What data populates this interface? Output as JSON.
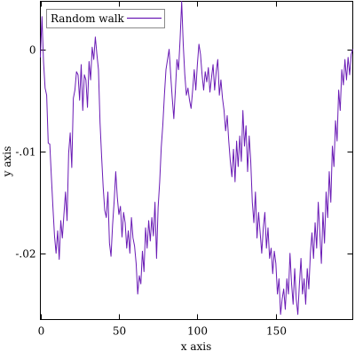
{
  "chart_data": {
    "type": "line",
    "title": "",
    "xlabel": "x axis",
    "ylabel": "y axis",
    "xlim": [
      0,
      199
    ],
    "ylim": [
      -0.0265,
      0.0047
    ],
    "x_ticks": [
      {
        "value": 0,
        "label": "0"
      },
      {
        "value": 50,
        "label": "50"
      },
      {
        "value": 100,
        "label": "100"
      },
      {
        "value": 150,
        "label": "150"
      }
    ],
    "y_ticks": [
      {
        "value": 0,
        "label": "0"
      },
      {
        "value": -0.01,
        "label": "-.01"
      },
      {
        "value": -0.02,
        "label": "-.02"
      }
    ],
    "legend": {
      "position": "top-left"
    },
    "series": [
      {
        "name": "Random walk",
        "color": "#6a1bb5",
        "x_start": 0,
        "x_step": 1,
        "values": [
          -0.0008,
          0.0032,
          -0.0012,
          -0.0038,
          -0.0045,
          -0.0092,
          -0.0093,
          -0.0125,
          -0.0155,
          -0.0183,
          -0.02,
          -0.0178,
          -0.0206,
          -0.0168,
          -0.0185,
          -0.0162,
          -0.014,
          -0.0168,
          -0.0102,
          -0.0082,
          -0.0116,
          -0.0048,
          -0.004,
          -0.0022,
          -0.0025,
          -0.005,
          -0.0015,
          -0.006,
          -0.0025,
          -0.003,
          -0.0057,
          -0.0012,
          -0.003,
          0.0002,
          -0.001,
          0.0012,
          -0.0005,
          -0.002,
          -0.0072,
          -0.0105,
          -0.0135,
          -0.0158,
          -0.0165,
          -0.014,
          -0.019,
          -0.0203,
          -0.0172,
          -0.0149,
          -0.012,
          -0.0145,
          -0.0162,
          -0.0154,
          -0.0184,
          -0.016,
          -0.017,
          -0.0195,
          -0.0178,
          -0.02,
          -0.0165,
          -0.0185,
          -0.0193,
          -0.021,
          -0.024,
          -0.0222,
          -0.023,
          -0.0198,
          -0.0218,
          -0.0175,
          -0.0195,
          -0.0168,
          -0.0188,
          -0.0165,
          -0.0183,
          -0.015,
          -0.0205,
          -0.0155,
          -0.013,
          -0.0096,
          -0.0074,
          -0.0045,
          -0.002,
          -0.001,
          0.0,
          -0.0025,
          -0.0048,
          -0.0068,
          -0.004,
          -0.001,
          -0.002,
          0.001,
          0.0047,
          0.0005,
          -0.0025,
          -0.0045,
          -0.0038,
          -0.005,
          -0.0058,
          -0.004,
          -0.002,
          -0.004,
          -0.0015,
          0.0005,
          -0.0005,
          -0.0025,
          -0.004,
          -0.0022,
          -0.0032,
          -0.0018,
          -0.0042,
          -0.0028,
          -0.0015,
          -0.004,
          -0.0022,
          -0.001,
          -0.0045,
          -0.003,
          -0.0048,
          -0.006,
          -0.008,
          -0.0065,
          -0.009,
          -0.011,
          -0.0125,
          -0.0098,
          -0.013,
          -0.009,
          -0.0115,
          -0.0085,
          -0.011,
          -0.006,
          -0.0095,
          -0.0075,
          -0.012,
          -0.0085,
          -0.011,
          -0.015,
          -0.017,
          -0.014,
          -0.0185,
          -0.016,
          -0.018,
          -0.02,
          -0.0175,
          -0.016,
          -0.0195,
          -0.0175,
          -0.0205,
          -0.0195,
          -0.022,
          -0.0198,
          -0.021,
          -0.024,
          -0.0225,
          -0.026,
          -0.0245,
          -0.0235,
          -0.0255,
          -0.0225,
          -0.024,
          -0.02,
          -0.023,
          -0.025,
          -0.0215,
          -0.0245,
          -0.026,
          -0.023,
          -0.0205,
          -0.024,
          -0.0225,
          -0.025,
          -0.0215,
          -0.0235,
          -0.02,
          -0.018,
          -0.0205,
          -0.017,
          -0.0195,
          -0.015,
          -0.018,
          -0.021,
          -0.016,
          -0.019,
          -0.014,
          -0.0165,
          -0.012,
          -0.015,
          -0.0095,
          -0.0115,
          -0.007,
          -0.009,
          -0.004,
          -0.006,
          -0.002,
          -0.0035,
          -0.001,
          -0.003,
          -0.0008,
          -0.0025,
          -0.0005,
          0.0
        ]
      }
    ]
  }
}
